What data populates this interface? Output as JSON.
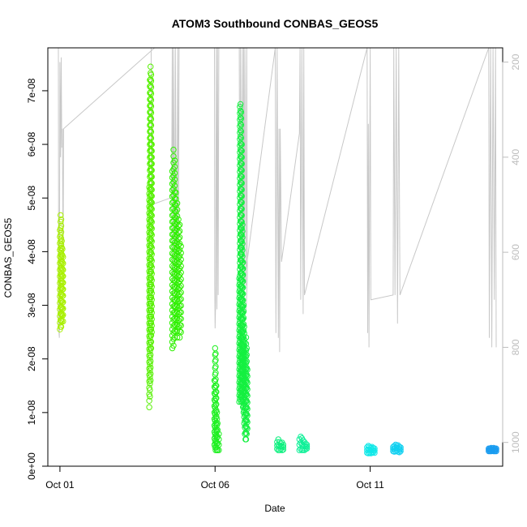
{
  "chart_data": {
    "type": "scatter",
    "title": "ATOM3 Southbound CONBAS_GEOS5",
    "xlabel": "Date",
    "ylabel": "CONBAS_GEOS5",
    "x_ticks": [
      "Oct 01",
      "Oct 06",
      "Oct 11"
    ],
    "x_tick_days": [
      1,
      6,
      11
    ],
    "xlim_days": [
      0.61,
      15.27
    ],
    "y_ticks": [
      "0e+00",
      "1e-08",
      "2e-08",
      "3e-08",
      "4e-08",
      "5e-08",
      "6e-08",
      "7e-08"
    ],
    "y_tick_values": [
      0,
      1e-08,
      2e-08,
      3e-08,
      4e-08,
      5e-08,
      6e-08,
      7e-08
    ],
    "ylim": [
      0,
      7.8e-08
    ],
    "y2_ticks": [
      "200",
      "400",
      "600",
      "800",
      "1000"
    ],
    "y2_tick_values": [
      200,
      400,
      600,
      800,
      1000
    ],
    "y2lim": [
      1050,
      170
    ],
    "grid": false,
    "point_series": [
      {
        "x": [
          1.0,
          1.02,
          1.04,
          1.06,
          1.08,
          1.1
        ],
        "ymin": [
          2.55e-08,
          2.6e-08,
          2.6e-08,
          2.7e-08,
          2.8e-08,
          2.7e-08
        ],
        "ymax": [
          4.4e-08,
          4.68e-08,
          4.6e-08,
          4.2e-08,
          4.05e-08,
          3.9e-08
        ],
        "color": "#a8f000"
      },
      {
        "x": [
          3.88,
          3.9,
          3.92,
          3.94,
          3.96
        ],
        "ymin": [
          1.1e-08,
          1.3e-08,
          1.6e-08,
          2.2e-08,
          2.5e-08
        ],
        "ymax": [
          5.2e-08,
          7.2e-08,
          7.45e-08,
          7.3e-08,
          6e-08
        ],
        "color": "#55f000"
      },
      {
        "x": [
          4.62,
          4.66,
          4.7,
          4.74,
          4.78,
          4.82,
          4.86,
          4.9
        ],
        "ymin": [
          2.2e-08,
          2.25e-08,
          2.4e-08,
          2.5e-08,
          2.4e-08,
          2.6e-08,
          2.4e-08,
          2.5e-08
        ],
        "ymax": [
          5.5e-08,
          5.9e-08,
          5.7e-08,
          5.1e-08,
          4.9e-08,
          4.6e-08,
          4.5e-08,
          4.1e-08
        ],
        "color": "#2ef000"
      },
      {
        "x": [
          5.98,
          6.0,
          6.02,
          6.04,
          6.06,
          6.08,
          6.12
        ],
        "ymin": [
          4e-09,
          3.5e-09,
          3e-09,
          3.5e-09,
          3e-09,
          3e-09,
          3e-09
        ],
        "ymax": [
          1.6e-08,
          2.2e-08,
          2.1e-08,
          1.5e-08,
          1e-08,
          8e-09,
          6e-09
        ],
        "color": "#1ef020"
      },
      {
        "x": [
          6.78,
          6.8,
          6.82,
          6.84,
          6.86,
          6.88,
          6.9,
          6.92,
          6.94,
          6.96,
          6.98,
          7.0,
          7.02,
          7.04
        ],
        "ymin": [
          1.2e-08,
          1.25e-08,
          1.3e-08,
          1.2e-08,
          1.3e-08,
          1.2e-08,
          1.1e-08,
          1e-08,
          8e-09,
          6e-09,
          5e-09,
          5e-09,
          6e-09,
          7e-09
        ],
        "ymax": [
          3.5e-08,
          6.7e-08,
          6.75e-08,
          6.6e-08,
          6e-08,
          4.5e-08,
          3.8e-08,
          3e-08,
          2.6e-08,
          2.3e-08,
          2.1e-08,
          2.4e-08,
          2.2e-08,
          1.8e-08
        ],
        "color": "#14f040"
      },
      {
        "x": [
          8.0,
          8.04,
          8.08,
          8.12,
          8.16,
          8.2
        ],
        "ymin": [
          3.2e-09,
          3e-09,
          3e-09,
          3.2e-09,
          3e-09,
          3.1e-09
        ],
        "ymax": [
          4.5e-09,
          5e-09,
          4.5e-09,
          4.2e-09,
          4.4e-09,
          4e-09
        ],
        "color": "#10f080"
      },
      {
        "x": [
          8.72,
          8.76,
          8.8,
          8.84,
          8.88,
          8.92,
          8.96
        ],
        "ymin": [
          3e-09,
          3.2e-09,
          3e-09,
          3.1e-09,
          3e-09,
          3.2e-09,
          3.3e-09
        ],
        "ymax": [
          5e-09,
          5.5e-09,
          5.2e-09,
          4.8e-09,
          4.5e-09,
          4.2e-09,
          4e-09
        ],
        "color": "#10f098"
      },
      {
        "x": [
          10.9,
          10.94,
          10.98,
          11.02,
          11.06,
          11.1,
          11.14
        ],
        "ymin": [
          2.5e-09,
          2.4e-09,
          2.5e-09,
          2.4e-09,
          2.5e-09,
          2.6e-09,
          2.5e-09
        ],
        "ymax": [
          3.5e-09,
          3.8e-09,
          3.6e-09,
          3.4e-09,
          3.6e-09,
          3.4e-09,
          3.3e-09
        ],
        "color": "#10e8e8"
      },
      {
        "x": [
          11.74,
          11.78,
          11.82,
          11.86,
          11.9,
          11.94,
          11.98
        ],
        "ymin": [
          2.8e-09,
          2.7e-09,
          2.8e-09,
          2.9e-09,
          2.7e-09,
          2.6e-09,
          2.8e-09
        ],
        "ymax": [
          3.6e-09,
          3.8e-09,
          4e-09,
          3.8e-09,
          3.9e-09,
          3.6e-09,
          3.5e-09
        ],
        "color": "#10d0f0"
      },
      {
        "x": [
          14.82,
          14.86,
          14.9,
          14.94,
          14.98,
          15.02,
          15.06
        ],
        "ymin": [
          2.8e-09,
          2.8e-09,
          2.8e-09,
          2.9e-09,
          2.8e-09,
          2.8e-09,
          2.8e-09
        ],
        "ymax": [
          3.3e-09,
          3.3e-09,
          3.4e-09,
          3.3e-09,
          3.4e-09,
          3.3e-09,
          3.3e-09
        ],
        "color": "#1a9cf0"
      }
    ],
    "altitude_trace": {
      "color": "#c8c8c8",
      "points": [
        [
          0.95,
          170
        ],
        [
          0.96,
          760
        ],
        [
          0.98,
          780
        ],
        [
          1.0,
          200
        ],
        [
          1.02,
          400
        ],
        [
          1.04,
          190
        ],
        [
          1.06,
          380
        ],
        [
          1.08,
          340
        ],
        [
          1.1,
          620
        ],
        [
          1.12,
          340
        ],
        [
          4.05,
          170
        ],
        [
          3.94,
          170
        ],
        [
          3.95,
          500
        ],
        [
          4.6,
          485
        ],
        [
          4.62,
          170
        ],
        [
          4.64,
          720
        ],
        [
          4.66,
          170
        ],
        [
          4.7,
          650
        ],
        [
          4.72,
          170
        ],
        [
          4.76,
          690
        ],
        [
          4.8,
          170
        ],
        [
          4.82,
          620
        ],
        [
          4.84,
          170
        ],
        [
          5.98,
          170
        ],
        [
          5.99,
          670
        ],
        [
          6.0,
          760
        ],
        [
          6.02,
          700
        ],
        [
          6.04,
          170
        ],
        [
          6.06,
          720
        ],
        [
          6.08,
          170
        ],
        [
          6.1,
          690
        ],
        [
          6.12,
          170
        ],
        [
          6.78,
          170
        ],
        [
          6.8,
          725
        ],
        [
          6.82,
          170
        ],
        [
          6.86,
          640
        ],
        [
          6.88,
          170
        ],
        [
          6.9,
          700
        ],
        [
          6.92,
          170
        ],
        [
          6.94,
          725
        ],
        [
          6.96,
          170
        ],
        [
          7.0,
          670
        ],
        [
          7.02,
          170
        ],
        [
          7.04,
          650
        ],
        [
          7.0,
          725
        ],
        [
          6.82,
          725
        ],
        [
          7.94,
          170
        ],
        [
          7.96,
          770
        ],
        [
          8.0,
          170
        ],
        [
          8.04,
          780
        ],
        [
          8.06,
          340
        ],
        [
          8.08,
          810
        ],
        [
          8.1,
          340
        ],
        [
          8.14,
          620
        ],
        [
          8.72,
          350
        ],
        [
          8.74,
          170
        ],
        [
          8.76,
          700
        ],
        [
          8.8,
          170
        ],
        [
          8.84,
          730
        ],
        [
          8.86,
          170
        ],
        [
          8.88,
          690
        ],
        [
          10.9,
          170
        ],
        [
          10.92,
          770
        ],
        [
          10.94,
          330
        ],
        [
          10.96,
          800
        ],
        [
          11.0,
          170
        ],
        [
          11.02,
          700
        ],
        [
          11.74,
          690
        ],
        [
          11.76,
          170
        ],
        [
          11.8,
          690
        ],
        [
          11.84,
          170
        ],
        [
          11.88,
          750
        ],
        [
          11.92,
          170
        ],
        [
          11.96,
          690
        ],
        [
          14.82,
          170
        ],
        [
          14.84,
          780
        ],
        [
          14.88,
          170
        ],
        [
          14.92,
          800
        ],
        [
          14.96,
          170
        ],
        [
          15.0,
          700
        ],
        [
          15.04,
          170
        ],
        [
          15.06,
          800
        ]
      ]
    }
  }
}
